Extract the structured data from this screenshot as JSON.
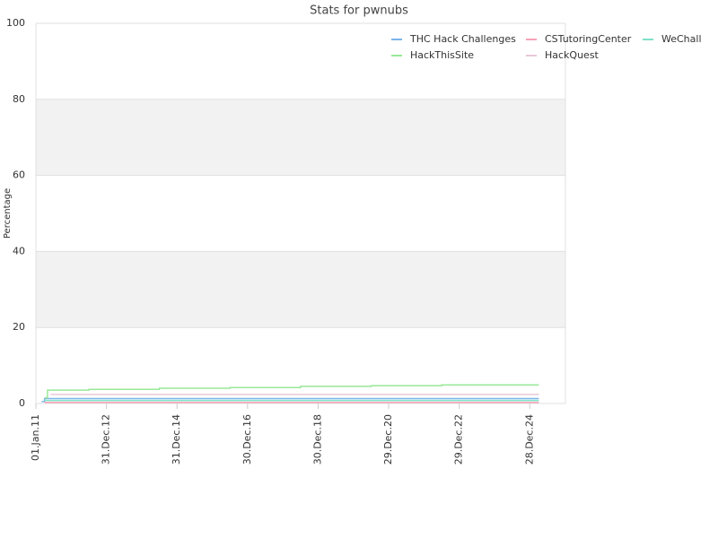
{
  "chart_data": {
    "type": "line",
    "step": true,
    "title": "Stats for pwnubs",
    "y_label": "Percentage",
    "ylim": [
      0,
      100
    ],
    "yticks": [
      0,
      20,
      40,
      60,
      80,
      100
    ],
    "grid": true,
    "alternate_bands": true,
    "xlim": [
      "2011-01-01",
      "2026-01-01"
    ],
    "xticks": [
      {
        "value": "2011-01-01",
        "label": "01.Jan.11"
      },
      {
        "value": "2012-12-31",
        "label": "31.Dec.12"
      },
      {
        "value": "2014-12-31",
        "label": "31.Dec.14"
      },
      {
        "value": "2016-12-30",
        "label": "30.Dec.16"
      },
      {
        "value": "2018-12-30",
        "label": "30.Dec.18"
      },
      {
        "value": "2020-12-29",
        "label": "29.Dec.20"
      },
      {
        "value": "2022-12-29",
        "label": "29.Dec.22"
      },
      {
        "value": "2024-12-28",
        "label": "28.Dec.24"
      }
    ],
    "legend": "top-right",
    "series": [
      {
        "name": "THC Hack Challenges",
        "color": "#7cb5ec",
        "x": [
          "2011-03",
          "2011-04",
          "2025-04"
        ],
        "values": [
          0.5,
          1.3,
          1.3
        ]
      },
      {
        "name": "CSTutoringCenter",
        "color": "#f7a1b5",
        "x": [
          "2011-04",
          "2025-04"
        ],
        "values": [
          0.3,
          0.3
        ]
      },
      {
        "name": "WeChall",
        "color": "#7fe0c8",
        "x": [
          "2011-04",
          "2025-04"
        ],
        "values": [
          0.8,
          0.8
        ]
      },
      {
        "name": "HackThisSite",
        "color": "#98e898",
        "x": [
          "2011-04",
          "2011-05",
          "2012-07",
          "2014-07",
          "2016-07",
          "2018-07",
          "2020-07",
          "2022-07",
          "2025-04"
        ],
        "values": [
          1.5,
          3.5,
          3.7,
          4.0,
          4.2,
          4.5,
          4.7,
          4.9,
          4.9
        ]
      },
      {
        "name": "HackQuest",
        "color": "#e8c8d8",
        "x": [
          "2011-06",
          "2025-04"
        ],
        "values": [
          2.4,
          2.4
        ]
      }
    ]
  }
}
